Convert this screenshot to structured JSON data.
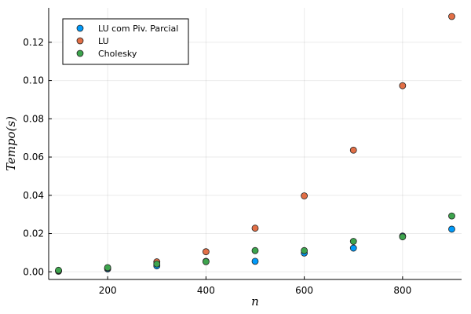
{
  "chart_data": {
    "type": "scatter",
    "xlabel": "n",
    "ylabel": "Tempo(s)",
    "xlim": [
      80,
      920
    ],
    "ylim": [
      -0.004,
      0.138
    ],
    "xticks": [
      200,
      400,
      600,
      800
    ],
    "yticks": [
      0.0,
      0.02,
      0.04,
      0.06,
      0.08,
      0.1,
      0.12
    ],
    "grid": true,
    "legend_position": "top-left",
    "x": [
      100,
      200,
      300,
      400,
      500,
      600,
      700,
      800,
      900
    ],
    "series": [
      {
        "name": "LU com Piv. Parcial",
        "color": "#009AFA",
        "values": [
          0.0003,
          0.0015,
          0.0031,
          0.0055,
          0.0055,
          0.0098,
          0.0124,
          0.0187,
          0.0223
        ]
      },
      {
        "name": "LU",
        "color": "#E26F46",
        "values": [
          0.0005,
          0.002,
          0.0052,
          0.0105,
          0.0228,
          0.0397,
          0.0636,
          0.0973,
          0.1335
        ]
      },
      {
        "name": "Cholesky",
        "color": "#3DA44D",
        "values": [
          0.0008,
          0.0022,
          0.0041,
          0.0053,
          0.0111,
          0.0111,
          0.0159,
          0.0183,
          0.0292
        ]
      }
    ]
  }
}
